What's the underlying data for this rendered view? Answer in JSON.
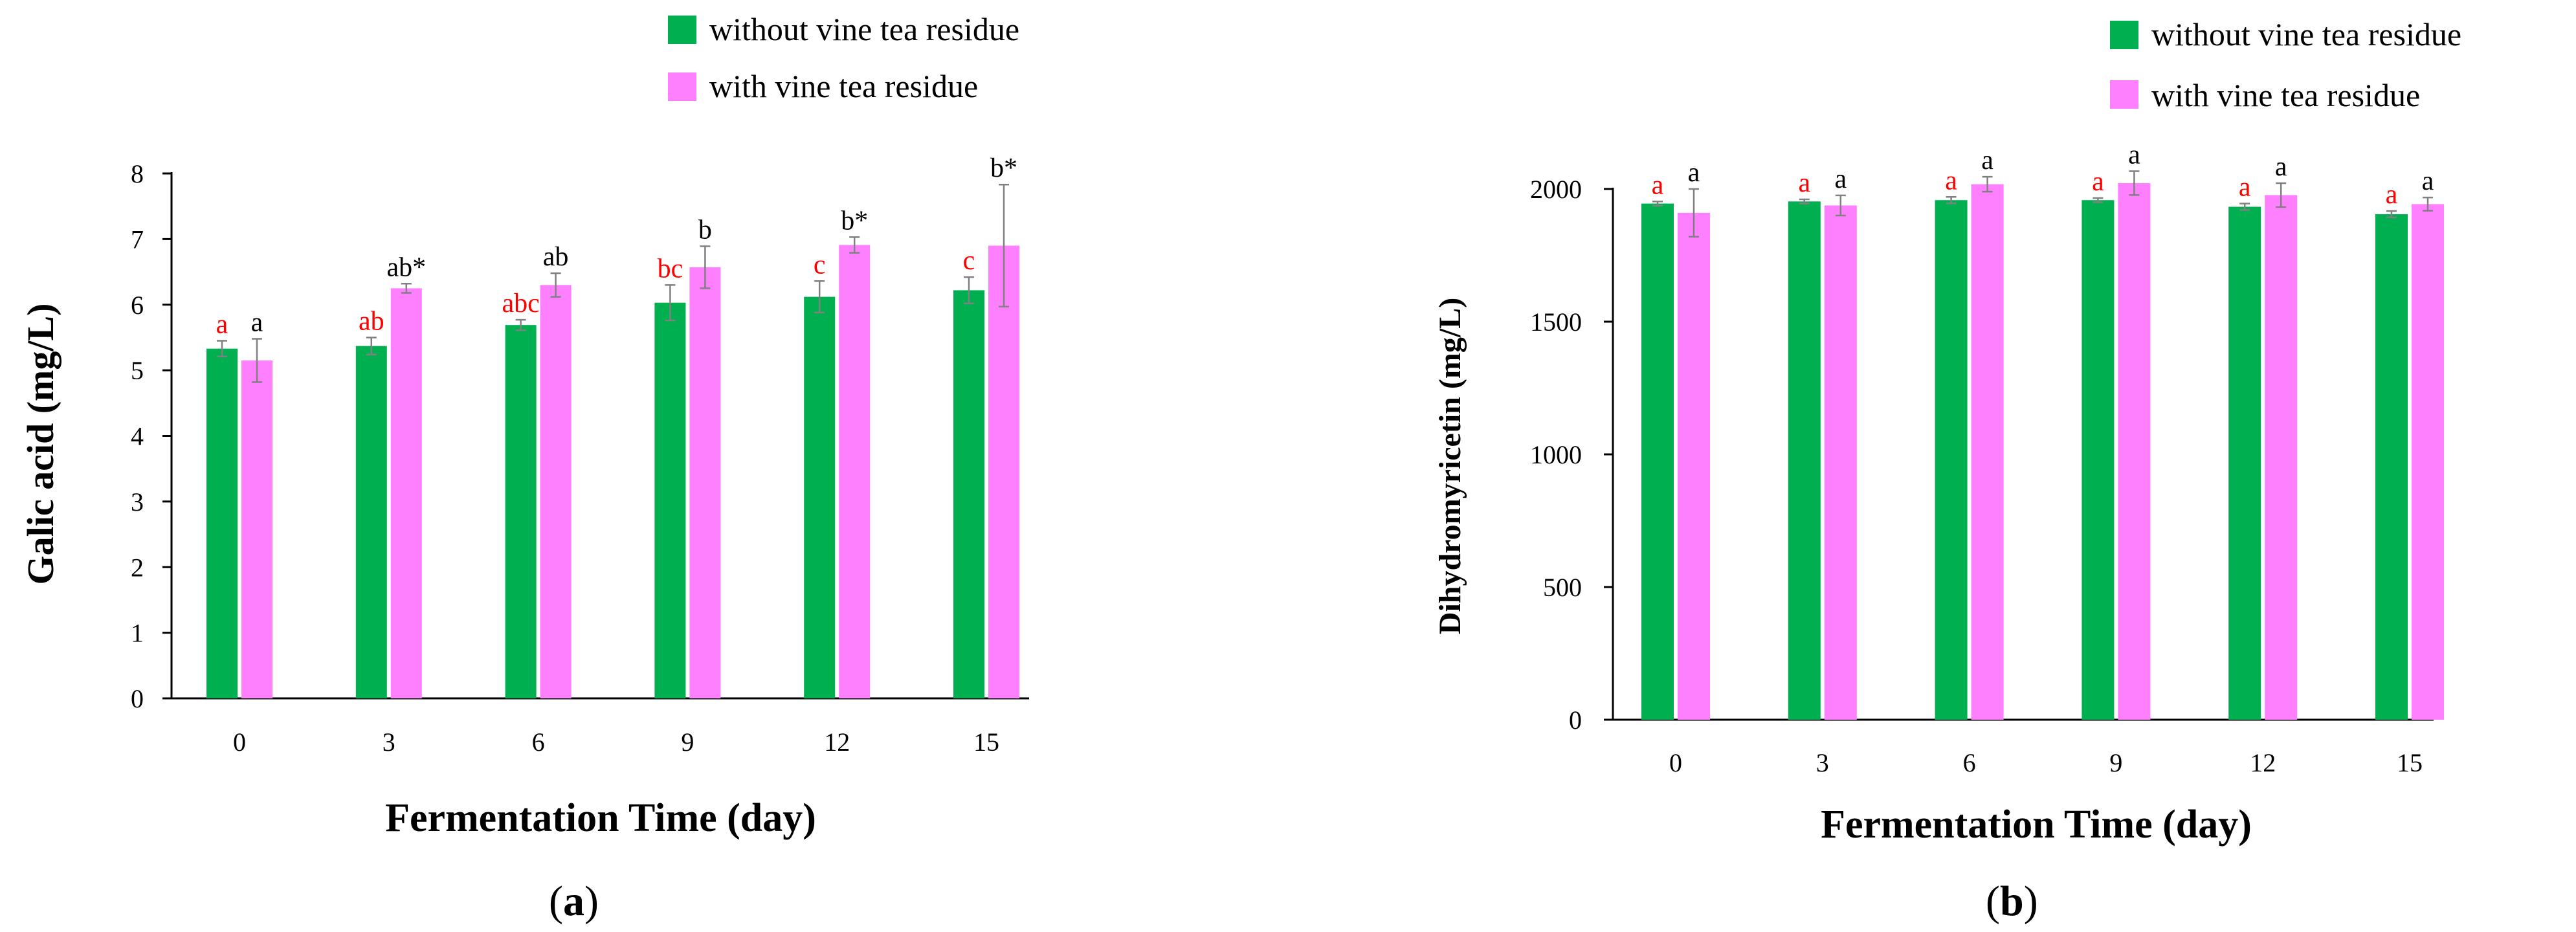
{
  "colors": {
    "without": "#00B050",
    "with": "#FF80FF",
    "sig_without": "#FF0000",
    "sig_with": "#000000",
    "axis": "#000000",
    "error_bar": "#808080"
  },
  "legend": {
    "without_label": "without vine tea residue",
    "with_label": "with vine tea residue"
  },
  "chart_data": [
    {
      "type": "bar",
      "panel_label": "(a)",
      "panel_letter": "a",
      "xlabel": "Fermentation Time (day)",
      "ylabel": "Galic acid (mg/L)",
      "ylim": [
        0,
        8
      ],
      "yticks": [
        "0",
        "1",
        "2",
        "3",
        "4",
        "5",
        "6",
        "7",
        "8"
      ],
      "categories": [
        "0",
        "3",
        "6",
        "9",
        "12",
        "15"
      ],
      "series": [
        {
          "name": "without vine tea residue",
          "values": [
            5.33,
            5.37,
            5.69,
            6.03,
            6.12,
            6.22
          ],
          "errors": [
            0.12,
            0.13,
            0.08,
            0.27,
            0.24,
            0.2
          ],
          "labels": [
            "a",
            "ab",
            "abc",
            "bc",
            "c",
            "c"
          ]
        },
        {
          "name": "with vine tea residue",
          "values": [
            5.15,
            6.25,
            6.3,
            6.57,
            6.91,
            6.9
          ],
          "errors": [
            0.33,
            0.07,
            0.18,
            0.32,
            0.12,
            0.93
          ],
          "labels": [
            "a",
            "ab*",
            "ab",
            "b",
            "b*",
            "b*"
          ]
        }
      ]
    },
    {
      "type": "bar",
      "panel_label": "(b)",
      "panel_letter": "b",
      "xlabel": "Fermentation Time (day)",
      "ylabel": "Dihydromyricetin (mg/L)",
      "ylim": [
        0,
        2000
      ],
      "yticks": [
        "0",
        "500",
        "1000",
        "1500",
        "2000"
      ],
      "categories": [
        "0",
        "3",
        "6",
        "9",
        "12",
        "15"
      ],
      "series": [
        {
          "name": "without vine tea residue",
          "values": [
            1945,
            1953,
            1958,
            1958,
            1933,
            1905
          ],
          "errors": [
            8,
            8,
            12,
            8,
            12,
            12
          ],
          "labels": [
            "a",
            "a",
            "a",
            "a",
            "a",
            "a"
          ]
        },
        {
          "name": "with vine tea residue",
          "values": [
            1910,
            1938,
            2018,
            2022,
            1977,
            1943
          ],
          "errors": [
            90,
            38,
            28,
            45,
            45,
            25
          ],
          "labels": [
            "a",
            "a",
            "a",
            "a",
            "a",
            "a"
          ]
        }
      ]
    }
  ]
}
